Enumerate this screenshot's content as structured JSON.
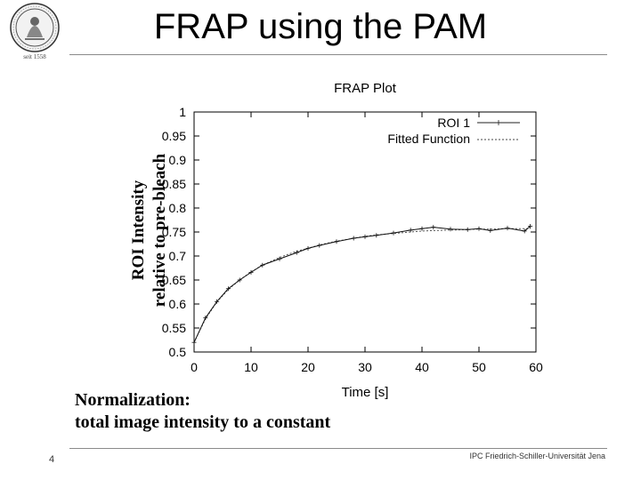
{
  "slide": {
    "title": "FRAP using the PAM",
    "logo_caption": "seit 1558",
    "page_number": "4",
    "footer": "IPC Friedrich-Schiller-Universität Jena",
    "note_line1": "Normalization:",
    "note_line2": "total image intensity to a constant",
    "ylabel_line1": "ROI Intensity",
    "ylabel_line2": "relative to pre-bleach"
  },
  "chart_data": {
    "type": "line",
    "title": "FRAP Plot",
    "xlabel": "Time [s]",
    "xlim": [
      0,
      60
    ],
    "ylim": [
      0.5,
      1.0
    ],
    "x_ticks": [
      "0",
      "10",
      "20",
      "30",
      "40",
      "50",
      "60"
    ],
    "y_ticks": [
      "0.5",
      "0.55",
      "0.6",
      "0.65",
      "0.7",
      "0.75",
      "0.8",
      "0.85",
      "0.9",
      "0.95",
      "1"
    ],
    "legend_position": "top-right",
    "grid": false,
    "series": [
      {
        "name": "ROI 1",
        "style": "solid line with plus markers",
        "x": [
          0,
          2,
          4,
          6,
          8,
          10,
          12,
          15,
          18,
          20,
          22,
          25,
          28,
          30,
          32,
          35,
          38,
          40,
          42,
          45,
          48,
          50,
          52,
          55,
          58,
          59
        ],
        "y": [
          0.52,
          0.571,
          0.605,
          0.632,
          0.65,
          0.666,
          0.681,
          0.694,
          0.707,
          0.716,
          0.722,
          0.73,
          0.737,
          0.74,
          0.743,
          0.748,
          0.754,
          0.757,
          0.76,
          0.756,
          0.755,
          0.757,
          0.753,
          0.758,
          0.752,
          0.762
        ]
      },
      {
        "name": "Fitted Function",
        "style": "dotted line",
        "x": [
          0,
          2,
          4,
          6,
          8,
          10,
          12,
          15,
          18,
          20,
          22,
          25,
          28,
          30,
          32,
          35,
          38,
          40,
          42,
          45,
          48,
          50,
          52,
          55,
          58,
          59
        ],
        "y": [
          0.52,
          0.569,
          0.604,
          0.63,
          0.65,
          0.667,
          0.681,
          0.697,
          0.71,
          0.716,
          0.723,
          0.731,
          0.737,
          0.741,
          0.744,
          0.747,
          0.75,
          0.752,
          0.753,
          0.754,
          0.755,
          0.756,
          0.756,
          0.757,
          0.757,
          0.757
        ]
      }
    ]
  }
}
